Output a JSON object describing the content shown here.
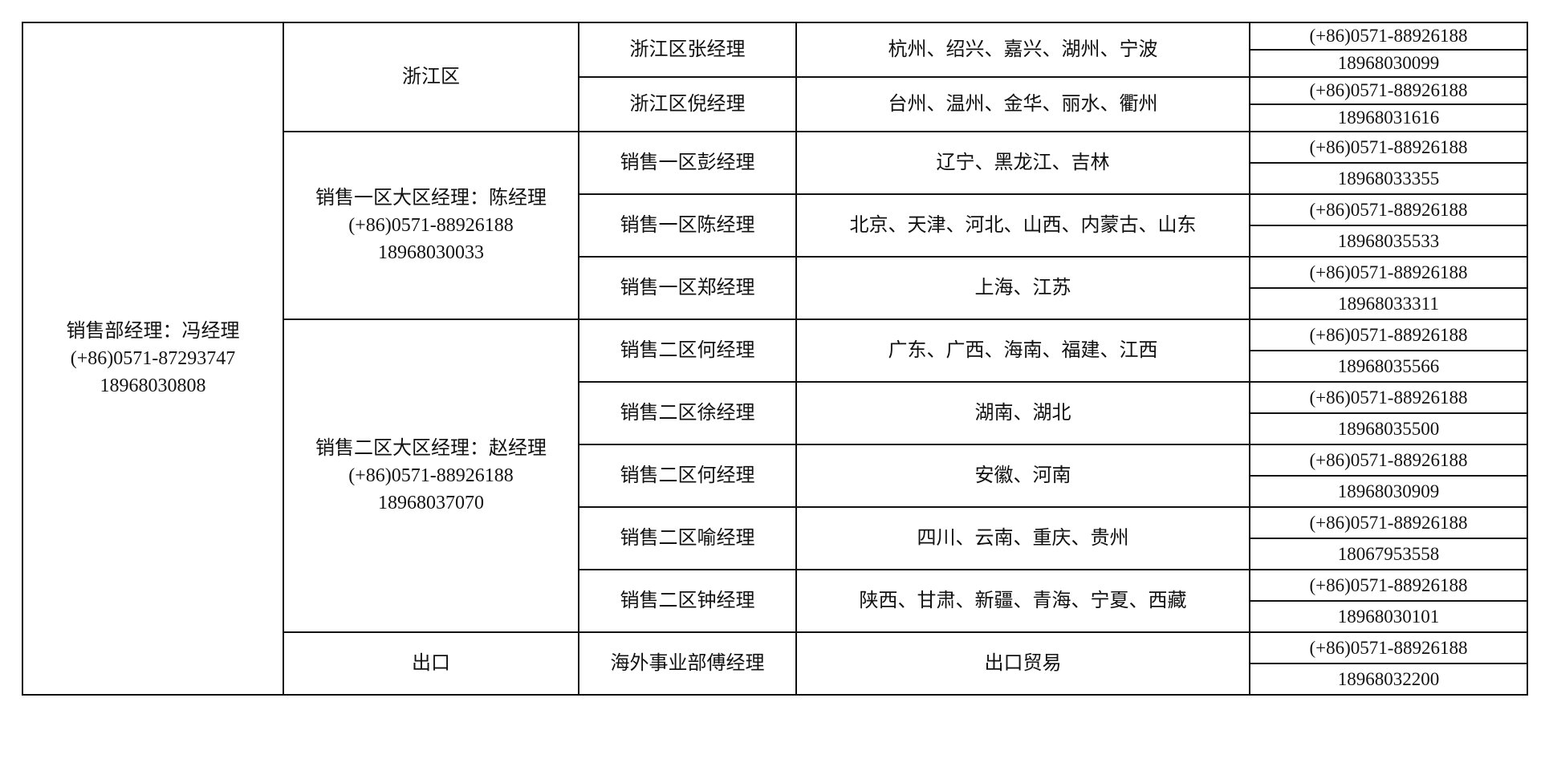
{
  "head": {
    "title": "销售部经理：冯经理",
    "phone": "(+86)0571-87293747",
    "mobile": "18968030808"
  },
  "regions": [
    {
      "name": "浙江区",
      "managers": [
        {
          "name": "浙江区张经理",
          "areas": "杭州、绍兴、嘉兴、湖州、宁波",
          "phone": "(+86)0571-88926188",
          "mobile": "18968030099"
        },
        {
          "name": "浙江区倪经理",
          "areas": "台州、温州、金华、丽水、衢州",
          "phone": "(+86)0571-88926188",
          "mobile": "18968031616"
        }
      ]
    },
    {
      "name": "销售一区大区经理：陈经理",
      "phone": "(+86)0571-88926188",
      "mobile": "18968030033",
      "managers": [
        {
          "name": "销售一区彭经理",
          "areas": "辽宁、黑龙江、吉林",
          "phone": "(+86)0571-88926188",
          "mobile": "18968033355"
        },
        {
          "name": "销售一区陈经理",
          "areas": "北京、天津、河北、山西、内蒙古、山东",
          "phone": "(+86)0571-88926188",
          "mobile": "18968035533"
        },
        {
          "name": "销售一区郑经理",
          "areas": "上海、江苏",
          "phone": "(+86)0571-88926188",
          "mobile": "18968033311"
        }
      ]
    },
    {
      "name": "销售二区大区经理：赵经理",
      "phone": "(+86)0571-88926188",
      "mobile": "18968037070",
      "managers": [
        {
          "name": "销售二区何经理",
          "areas": "广东、广西、海南、福建、江西",
          "phone": "(+86)0571-88926188",
          "mobile": "18968035566"
        },
        {
          "name": "销售二区徐经理",
          "areas": "湖南、湖北",
          "phone": "(+86)0571-88926188",
          "mobile": "18968035500"
        },
        {
          "name": "销售二区何经理",
          "areas": "安徽、河南",
          "phone": "(+86)0571-88926188",
          "mobile": "18968030909"
        },
        {
          "name": "销售二区喻经理",
          "areas": "四川、云南、重庆、贵州",
          "phone": "(+86)0571-88926188",
          "mobile": "18067953558"
        },
        {
          "name": "销售二区钟经理",
          "areas": "陕西、甘肃、新疆、青海、宁夏、西藏",
          "phone": "(+86)0571-88926188",
          "mobile": "18968030101"
        }
      ]
    },
    {
      "name": "出口",
      "managers": [
        {
          "name": "海外事业部傅经理",
          "areas": "出口贸易",
          "phone": "(+86)0571-88926188",
          "mobile": "18968032200"
        }
      ]
    }
  ]
}
